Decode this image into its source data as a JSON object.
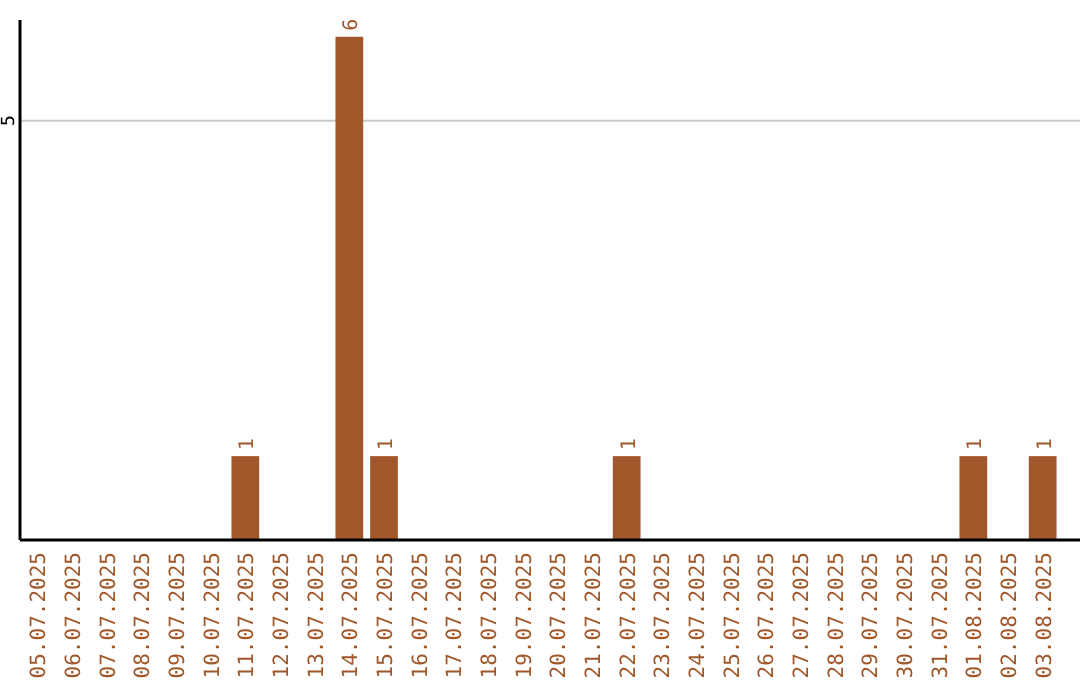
{
  "chart_data": {
    "type": "bar",
    "categories": [
      "05.07.2025",
      "06.07.2025",
      "07.07.2025",
      "08.07.2025",
      "09.07.2025",
      "10.07.2025",
      "11.07.2025",
      "12.07.2025",
      "13.07.2025",
      "14.07.2025",
      "15.07.2025",
      "16.07.2025",
      "17.07.2025",
      "18.07.2025",
      "19.07.2025",
      "20.07.2025",
      "21.07.2025",
      "22.07.2025",
      "23.07.2025",
      "24.07.2025",
      "25.07.2025",
      "26.07.2025",
      "27.07.2025",
      "28.07.2025",
      "29.07.2025",
      "30.07.2025",
      "31.07.2025",
      "01.08.2025",
      "02.08.2025",
      "03.08.2025"
    ],
    "values": [
      0,
      0,
      0,
      0,
      0,
      0,
      1,
      0,
      0,
      6,
      1,
      0,
      0,
      0,
      0,
      0,
      0,
      1,
      0,
      0,
      0,
      0,
      0,
      0,
      0,
      0,
      0,
      1,
      0,
      1
    ],
    "value_labels": [
      null,
      null,
      null,
      null,
      null,
      null,
      "1",
      null,
      null,
      "6",
      "1",
      null,
      null,
      null,
      null,
      null,
      null,
      "1",
      null,
      null,
      null,
      null,
      null,
      null,
      null,
      null,
      null,
      "1",
      null,
      "1"
    ],
    "color": "#a0582a",
    "ylim": [
      0,
      6.2
    ],
    "yticks": [
      5
    ],
    "grid": "y"
  }
}
